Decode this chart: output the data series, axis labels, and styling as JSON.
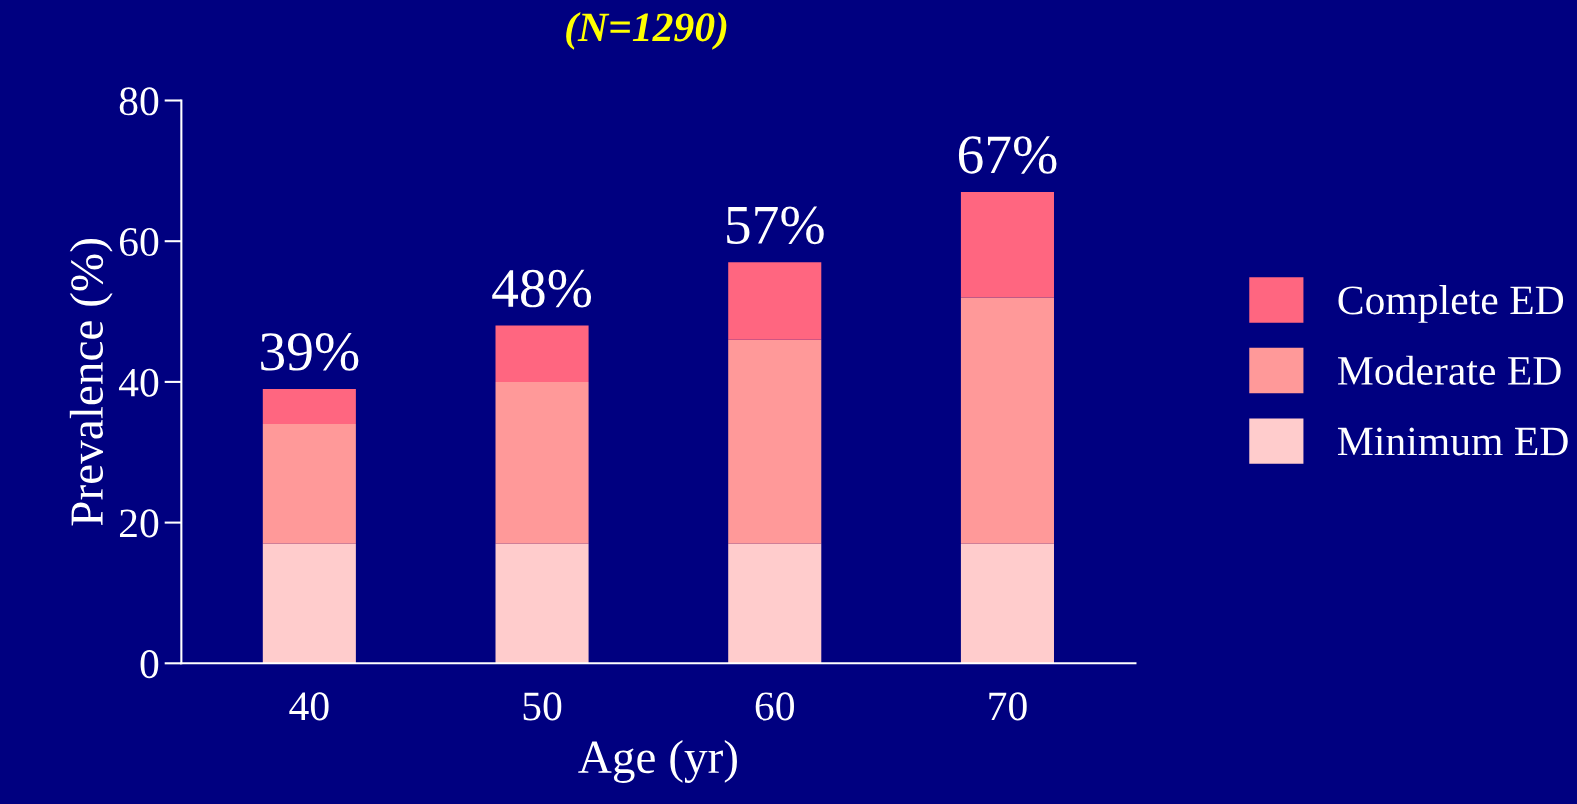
{
  "chart_data": {
    "type": "bar",
    "title": "(N=1290)",
    "xlabel": "Age (yr)",
    "ylabel": "Prevalence (%)",
    "categories": [
      "40",
      "50",
      "60",
      "70"
    ],
    "series": [
      {
        "name": "Minimum ED",
        "color": "#ffcccc",
        "values": [
          17,
          17,
          17,
          17
        ]
      },
      {
        "name": "Moderate ED",
        "color": "#ff9999",
        "values": [
          17,
          23,
          29,
          35
        ]
      },
      {
        "name": "Complete ED",
        "color": "#ff6680",
        "values": [
          5,
          8,
          11,
          15
        ]
      }
    ],
    "stacked": true,
    "totals": [
      "39%",
      "48%",
      "57%",
      "67%"
    ],
    "ylim": [
      0,
      80
    ],
    "yticks": [
      0,
      20,
      40,
      60,
      80
    ],
    "grid": false,
    "legend": "right"
  }
}
